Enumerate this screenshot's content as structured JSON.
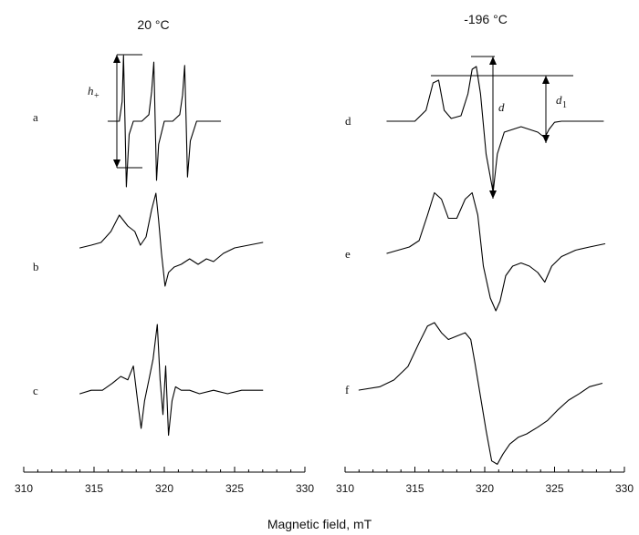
{
  "chart_data": [
    {
      "type": "line",
      "title": "20 °C",
      "xlabel": "Magnetic field, mT",
      "xlim": [
        310,
        330
      ],
      "x_ticks": [
        310,
        315,
        320,
        325,
        330
      ],
      "series": [
        {
          "name": "a",
          "x": [
            316.0,
            316.8,
            317.0,
            317.1,
            317.2,
            317.3,
            317.5,
            317.8,
            318.4,
            318.9,
            319.1,
            319.25,
            319.35,
            319.45,
            319.6,
            320.0,
            320.6,
            321.1,
            321.3,
            321.45,
            321.55,
            321.65,
            321.85,
            322.3,
            324.0
          ],
          "y": [
            0,
            0,
            0.3,
            1.0,
            0,
            -1.0,
            -0.2,
            0,
            0,
            0.1,
            0.45,
            0.9,
            0.0,
            -0.9,
            -0.35,
            0,
            0,
            0.1,
            0.4,
            0.85,
            0.0,
            -0.85,
            -0.3,
            0,
            0
          ]
        },
        {
          "name": "b",
          "x": [
            314.0,
            314.8,
            315.5,
            316.2,
            316.8,
            317.4,
            317.9,
            318.3,
            318.7,
            319.1,
            319.4,
            319.6,
            319.8,
            320.05,
            320.3,
            320.7,
            321.2,
            321.8,
            322.4,
            323.0,
            323.5,
            324.2,
            325.0,
            326.0,
            327.0
          ],
          "y": [
            0,
            0.05,
            0.1,
            0.3,
            0.6,
            0.4,
            0.3,
            0.05,
            0.2,
            0.7,
            1.0,
            0.5,
            -0.1,
            -0.7,
            -0.45,
            -0.35,
            -0.3,
            -0.2,
            -0.3,
            -0.2,
            -0.25,
            -0.1,
            0.0,
            0.05,
            0.1
          ]
        },
        {
          "name": "c",
          "x": [
            314.0,
            314.8,
            315.6,
            316.3,
            316.9,
            317.4,
            317.8,
            318.1,
            318.35,
            318.6,
            318.9,
            319.2,
            319.5,
            319.7,
            319.9,
            320.1,
            320.3,
            320.55,
            320.8,
            321.2,
            321.8,
            322.5,
            323.5,
            324.5,
            325.5,
            327.0
          ],
          "y": [
            0,
            0.05,
            0.05,
            0.15,
            0.25,
            0.2,
            0.4,
            -0.1,
            -0.5,
            -0.1,
            0.2,
            0.5,
            1.0,
            0.2,
            -0.3,
            0.4,
            -0.6,
            -0.1,
            0.1,
            0.05,
            0.05,
            0.0,
            0.05,
            0.0,
            0.05,
            0.05
          ]
        }
      ]
    },
    {
      "type": "line",
      "title": "-196 °C",
      "xlabel": "Magnetic field, mT",
      "xlim": [
        310,
        330
      ],
      "x_ticks": [
        310,
        315,
        320,
        325,
        330
      ],
      "series": [
        {
          "name": "d",
          "x": [
            313.0,
            315.0,
            315.8,
            316.3,
            316.7,
            317.1,
            317.6,
            318.3,
            318.8,
            319.1,
            319.4,
            319.7,
            320.1,
            320.6,
            320.9,
            321.4,
            322.0,
            322.6,
            323.2,
            323.8,
            324.3,
            324.6,
            325.0,
            325.5,
            326.5,
            328.5
          ],
          "y": [
            0,
            0,
            0.2,
            0.7,
            0.75,
            0.2,
            0.05,
            0.1,
            0.5,
            0.95,
            1.0,
            0.5,
            -0.6,
            -1.3,
            -0.6,
            -0.2,
            -0.15,
            -0.1,
            -0.15,
            -0.2,
            -0.3,
            -0.15,
            -0.02,
            0,
            0,
            0
          ]
        },
        {
          "name": "e",
          "x": [
            313.0,
            313.8,
            314.6,
            315.3,
            315.9,
            316.4,
            316.9,
            317.4,
            318.0,
            318.6,
            319.1,
            319.5,
            319.9,
            320.4,
            320.8,
            321.1,
            321.5,
            322.0,
            322.6,
            323.2,
            323.8,
            324.3,
            324.8,
            325.5,
            326.5,
            327.5,
            328.6
          ],
          "y": [
            0,
            0.05,
            0.1,
            0.2,
            0.6,
            0.95,
            0.85,
            0.55,
            0.55,
            0.85,
            0.95,
            0.6,
            -0.2,
            -0.7,
            -0.9,
            -0.75,
            -0.35,
            -0.2,
            -0.15,
            -0.2,
            -0.3,
            -0.45,
            -0.2,
            -0.05,
            0.05,
            0.1,
            0.15
          ]
        },
        {
          "name": "f",
          "x": [
            311.0,
            312.5,
            313.5,
            314.5,
            315.3,
            315.9,
            316.4,
            316.9,
            317.4,
            318.0,
            318.6,
            319.0,
            319.3,
            319.7,
            320.1,
            320.5,
            320.9,
            321.3,
            321.8,
            322.4,
            323.0,
            323.8,
            324.5,
            325.2,
            326.0,
            326.8,
            327.5,
            328.4
          ],
          "y": [
            0,
            0.05,
            0.15,
            0.35,
            0.7,
            0.95,
            1.0,
            0.85,
            0.75,
            0.8,
            0.85,
            0.75,
            0.4,
            -0.1,
            -0.6,
            -1.05,
            -1.1,
            -0.95,
            -0.8,
            -0.7,
            -0.65,
            -0.55,
            -0.45,
            -0.3,
            -0.15,
            -0.05,
            0.05,
            0.1
          ]
        }
      ]
    }
  ],
  "markers": {
    "h_plus": {
      "symbol": "h",
      "sub": "+"
    },
    "d": {
      "symbol": "d"
    },
    "d1": {
      "symbol": "d",
      "sub": "1"
    }
  }
}
